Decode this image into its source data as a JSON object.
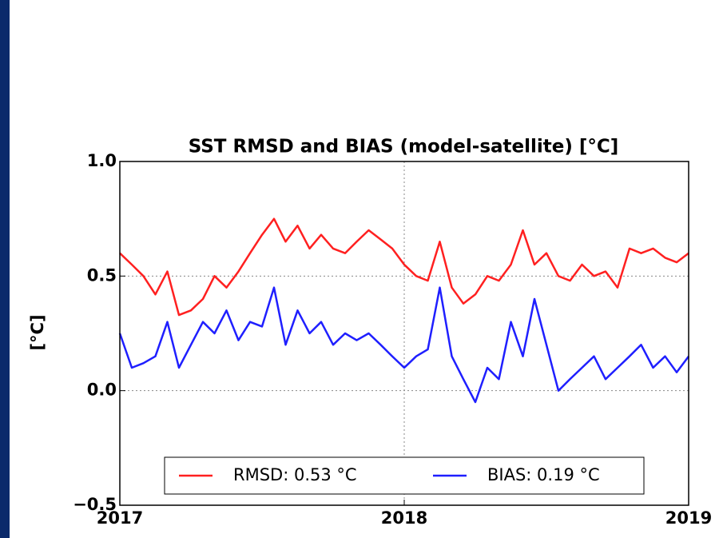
{
  "chart_data": {
    "type": "line",
    "title": "SST RMSD and BIAS (model-satellite) [°C]",
    "y_label": "[°C]",
    "x": [
      2017.0,
      2017.042,
      2017.083,
      2017.125,
      2017.167,
      2017.208,
      2017.25,
      2017.292,
      2017.333,
      2017.375,
      2017.417,
      2017.458,
      2017.5,
      2017.542,
      2017.583,
      2017.625,
      2017.667,
      2017.708,
      2017.75,
      2017.792,
      2017.833,
      2017.875,
      2017.917,
      2017.958,
      2018.0,
      2018.042,
      2018.083,
      2018.125,
      2018.167,
      2018.208,
      2018.25,
      2018.292,
      2018.333,
      2018.375,
      2018.417,
      2018.458,
      2018.5,
      2018.542,
      2018.583,
      2018.625,
      2018.667,
      2018.708,
      2018.75,
      2018.792,
      2018.833,
      2018.875,
      2018.917,
      2018.958,
      2019.0
    ],
    "series": [
      {
        "name": "RMSD: 0.53 °C",
        "color": "#ff2020",
        "values": [
          0.6,
          0.55,
          0.5,
          0.42,
          0.52,
          0.33,
          0.35,
          0.4,
          0.5,
          0.45,
          0.52,
          0.6,
          0.68,
          0.75,
          0.65,
          0.72,
          0.62,
          0.68,
          0.62,
          0.6,
          0.65,
          0.7,
          0.66,
          0.62,
          0.55,
          0.5,
          0.48,
          0.65,
          0.45,
          0.38,
          0.42,
          0.5,
          0.48,
          0.55,
          0.7,
          0.55,
          0.6,
          0.5,
          0.48,
          0.55,
          0.5,
          0.52,
          0.45,
          0.62,
          0.6,
          0.62,
          0.58,
          0.56,
          0.6
        ]
      },
      {
        "name": "BIAS: 0.19 °C",
        "color": "#1f1fff",
        "values": [
          0.25,
          0.1,
          0.12,
          0.15,
          0.3,
          0.1,
          0.2,
          0.3,
          0.25,
          0.35,
          0.22,
          0.3,
          0.28,
          0.45,
          0.2,
          0.35,
          0.25,
          0.3,
          0.2,
          0.25,
          0.22,
          0.25,
          0.2,
          0.15,
          0.1,
          0.15,
          0.18,
          0.45,
          0.15,
          0.05,
          -0.05,
          0.1,
          0.05,
          0.3,
          0.15,
          0.4,
          0.2,
          0.0,
          0.05,
          0.1,
          0.15,
          0.05,
          0.1,
          0.15,
          0.2,
          0.1,
          0.15,
          0.08,
          0.15
        ]
      }
    ],
    "xlim": [
      2017,
      2019
    ],
    "xticks": [
      2017,
      2018,
      2019
    ],
    "ylim": [
      -0.5,
      1.0
    ],
    "yticks": [
      {
        "value": -0.5,
        "label": "−0.5"
      },
      {
        "value": 0,
        "label": "0.0"
      },
      0.5,
      {
        "value": 1.0,
        "label": "1.0"
      }
    ],
    "grid": true,
    "legend": "lower center"
  }
}
